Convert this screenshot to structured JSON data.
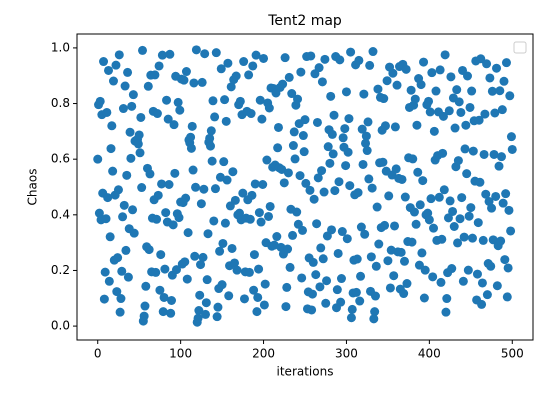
{
  "chart_data": {
    "type": "scatter",
    "title": "Tent2 map",
    "x_label": "iterations",
    "y_label": "Chaos",
    "color": "#1f77b4",
    "xlim": [
      -25,
      525
    ],
    "ylim": [
      -0.05,
      1.05
    ],
    "xticks": [
      0,
      100,
      200,
      300,
      400,
      500
    ],
    "yticks": [
      {
        "value": 0,
        "label": "0.0"
      },
      0.2,
      0.4,
      0.6,
      0.8,
      {
        "value": 1,
        "label": "1.0"
      }
    ],
    "x": [
      0,
      1,
      2,
      3,
      4,
      5,
      6,
      7,
      8,
      9,
      10,
      11,
      12,
      13,
      14,
      15,
      16,
      17,
      18,
      19,
      20,
      21,
      22,
      23,
      24,
      25,
      26,
      27,
      28,
      29,
      30,
      31,
      32,
      33,
      34,
      35,
      36,
      37,
      38,
      39,
      40,
      41,
      42,
      43,
      44,
      45,
      46,
      47,
      48,
      49,
      50,
      51,
      52,
      53,
      54,
      55,
      56,
      57,
      58,
      59,
      60,
      61,
      62,
      63,
      64,
      65,
      66,
      67,
      68,
      69,
      70,
      71,
      72,
      73,
      74,
      75,
      76,
      77,
      78,
      79,
      80,
      81,
      82,
      83,
      84,
      85,
      86,
      87,
      88,
      89,
      90,
      91,
      92,
      93,
      94,
      95,
      96,
      97,
      98,
      99,
      100,
      101,
      102,
      103,
      104,
      105,
      106,
      107,
      108,
      109,
      110,
      111,
      112,
      113,
      114,
      115,
      116,
      117,
      118,
      119,
      120,
      121,
      122,
      123,
      124,
      125,
      126,
      127,
      128,
      129,
      130,
      131,
      132,
      133,
      134,
      135,
      136,
      137,
      138,
      139,
      140,
      141,
      142,
      143,
      144,
      145,
      146,
      147,
      148,
      149,
      150,
      151,
      152,
      153,
      154,
      155,
      156,
      157,
      158,
      159,
      160,
      161,
      162,
      163,
      164,
      165,
      166,
      167,
      168,
      169,
      170,
      171,
      172,
      173,
      174,
      175,
      176,
      177,
      178,
      179,
      180,
      181,
      182,
      183,
      184,
      185,
      186,
      187,
      188,
      189,
      190,
      191,
      192,
      193,
      194,
      195,
      196,
      197,
      198,
      199,
      200,
      201,
      202,
      203,
      204,
      205,
      206,
      207,
      208,
      209,
      210,
      211,
      212,
      213,
      214,
      215,
      216,
      217,
      218,
      219,
      220,
      221,
      222,
      223,
      224,
      225,
      226,
      227,
      228,
      229,
      230,
      231,
      232,
      233,
      234,
      235,
      236,
      237,
      238,
      239,
      240,
      241,
      242,
      243,
      244,
      245,
      246,
      247,
      248,
      249,
      250,
      251,
      252,
      253,
      254,
      255,
      256,
      257,
      258,
      259,
      260,
      261,
      262,
      263,
      264,
      265,
      266,
      267,
      268,
      269,
      270,
      271,
      272,
      273,
      274,
      275,
      276,
      277,
      278,
      279,
      280,
      281,
      282,
      283,
      284,
      285,
      286,
      287,
      288,
      289,
      290,
      291,
      292,
      293,
      294,
      295,
      296,
      297,
      298,
      299,
      300,
      301,
      302,
      303,
      304,
      305,
      306,
      307,
      308,
      309,
      310,
      311,
      312,
      313,
      314,
      315,
      316,
      317,
      318,
      319,
      320,
      321,
      322,
      323,
      324,
      325,
      326,
      327,
      328,
      329,
      330,
      331,
      332,
      333,
      334,
      335,
      336,
      337,
      338,
      339,
      340,
      341,
      342,
      343,
      344,
      345,
      346,
      347,
      348,
      349,
      350,
      351,
      352,
      353,
      354,
      355,
      356,
      357,
      358,
      359,
      360,
      361,
      362,
      363,
      364,
      365,
      366,
      367,
      368,
      369,
      370,
      371,
      372,
      373,
      374,
      375,
      376,
      377,
      378,
      379,
      380,
      381,
      382,
      383,
      384,
      385,
      386,
      387,
      388,
      389,
      390,
      391,
      392,
      393,
      394,
      395,
      396,
      397,
      398,
      399,
      400,
      401,
      402,
      403,
      404,
      405,
      406,
      407,
      408,
      409,
      410,
      411,
      412,
      413,
      414,
      415,
      416,
      417,
      418,
      419,
      420,
      421,
      422,
      423,
      424,
      425,
      426,
      427,
      428,
      429,
      430,
      431,
      432,
      433,
      434,
      435,
      436,
      437,
      438,
      439,
      440,
      441,
      442,
      443,
      444,
      445,
      446,
      447,
      448,
      449,
      450,
      451,
      452,
      453,
      454,
      455,
      456,
      457,
      458,
      459,
      460,
      461,
      462,
      463,
      464,
      465,
      466,
      467,
      468,
      469,
      470,
      471,
      472,
      473,
      474,
      475,
      476,
      477,
      478,
      479,
      480,
      481,
      482,
      483,
      484,
      485,
      486,
      487,
      488,
      489,
      490,
      491,
      492,
      493,
      494,
      495,
      496,
      497,
      498,
      499,
      500
    ],
    "values": [
      0.6,
      0.796,
      0.406,
      0.808,
      0.382,
      0.76,
      0.478,
      0.951,
      0.097,
      0.194,
      0.386,
      0.768,
      0.462,
      0.919,
      0.161,
      0.321,
      0.638,
      0.72,
      0.557,
      0.881,
      0.237,
      0.471,
      0.938,
      0.124,
      0.246,
      0.49,
      0.975,
      0.05,
      0.099,
      0.197,
      0.393,
      0.782,
      0.434,
      0.863,
      0.272,
      0.542,
      0.912,
      0.176,
      0.35,
      0.697,
      0.603,
      0.79,
      0.418,
      0.832,
      0.334,
      0.665,
      0.667,
      0.663,
      0.671,
      0.655,
      0.687,
      0.623,
      0.75,
      0.498,
      0.991,
      0.018,
      0.036,
      0.072,
      0.143,
      0.285,
      0.567,
      0.862,
      0.275,
      0.547,
      0.902,
      0.195,
      0.388,
      0.772,
      0.454,
      0.903,
      0.193,
      0.384,
      0.764,
      0.47,
      0.935,
      0.129,
      0.257,
      0.511,
      0.974,
      0.052,
      0.103,
      0.205,
      0.408,
      0.812,
      0.374,
      0.744,
      0.509,
      0.977,
      0.046,
      0.092,
      0.183,
      0.364,
      0.724,
      0.549,
      0.898,
      0.203,
      0.404,
      0.804,
      0.39,
      0.776,
      0.446,
      0.888,
      0.223,
      0.444,
      0.884,
      0.231,
      0.46,
      0.915,
      0.169,
      0.336,
      0.669,
      0.659,
      0.679,
      0.639,
      0.718,
      0.561,
      0.874,
      0.251,
      0.499,
      0.993,
      0.014,
      0.028,
      0.056,
      0.111,
      0.221,
      0.44,
      0.876,
      0.247,
      0.492,
      0.979,
      0.042,
      0.084,
      0.167,
      0.332,
      0.661,
      0.675,
      0.647,
      0.702,
      0.593,
      0.81,
      0.378,
      0.752,
      0.494,
      0.983,
      0.034,
      0.068,
      0.135,
      0.269,
      0.535,
      0.925,
      0.149,
      0.297,
      0.591,
      0.814,
      0.37,
      0.736,
      0.525,
      0.945,
      0.109,
      0.217,
      0.432,
      0.86,
      0.279,
      0.555,
      0.886,
      0.227,
      0.452,
      0.899,
      0.201,
      0.4,
      0.796,
      0.406,
      0.808,
      0.382,
      0.76,
      0.478,
      0.951,
      0.098,
      0.195,
      0.388,
      0.772,
      0.454,
      0.903,
      0.193,
      0.384,
      0.764,
      0.47,
      0.935,
      0.129,
      0.257,
      0.511,
      0.974,
      0.052,
      0.103,
      0.205,
      0.408,
      0.812,
      0.374,
      0.744,
      0.509,
      0.962,
      0.076,
      0.151,
      0.3,
      0.597,
      0.802,
      0.394,
      0.784,
      0.43,
      0.856,
      0.287,
      0.571,
      0.854,
      0.291,
      0.579,
      0.838,
      0.322,
      0.641,
      0.714,
      0.569,
      0.858,
      0.283,
      0.563,
      0.87,
      0.259,
      0.515,
      0.965,
      0.07,
      0.139,
      0.277,
      0.551,
      0.894,
      0.211,
      0.42,
      0.836,
      0.326,
      0.649,
      0.698,
      0.601,
      0.794,
      0.41,
      0.816,
      0.366,
      0.728,
      0.541,
      0.913,
      0.173,
      0.344,
      0.685,
      0.627,
      0.742,
      0.513,
      0.969,
      0.062,
      0.123,
      0.245,
      0.488,
      0.971,
      0.058,
      0.115,
      0.229,
      0.456,
      0.907,
      0.185,
      0.368,
      0.732,
      0.533,
      0.929,
      0.141,
      0.281,
      0.559,
      0.878,
      0.242,
      0.482,
      0.959,
      0.082,
      0.163,
      0.324,
      0.645,
      0.706,
      0.585,
      0.826,
      0.346,
      0.689,
      0.619,
      0.758,
      0.487,
      0.969,
      0.066,
      0.131,
      0.261,
      0.519,
      0.957,
      0.086,
      0.171,
      0.34,
      0.677,
      0.643,
      0.71,
      0.577,
      0.842,
      0.314,
      0.625,
      0.746,
      0.505,
      0.985,
      0.03,
      0.06,
      0.119,
      0.237,
      0.472,
      0.939,
      0.121,
      0.241,
      0.48,
      0.955,
      0.09,
      0.179,
      0.356,
      0.708,
      0.581,
      0.834,
      0.33,
      0.657,
      0.683,
      0.631,
      0.734,
      0.529,
      0.937,
      0.125,
      0.249,
      0.496,
      0.987,
      0.026,
      0.052,
      0.108,
      0.215,
      0.428,
      0.852,
      0.295,
      0.587,
      0.822,
      0.354,
      0.704,
      0.589,
      0.818,
      0.362,
      0.72,
      0.557,
      0.882,
      0.235,
      0.468,
      0.931,
      0.137,
      0.273,
      0.543,
      0.909,
      0.181,
      0.36,
      0.716,
      0.565,
      0.866,
      0.267,
      0.531,
      0.933,
      0.133,
      0.265,
      0.527,
      0.941,
      0.117,
      0.233,
      0.464,
      0.923,
      0.153,
      0.304,
      0.605,
      0.786,
      0.426,
      0.848,
      0.302,
      0.601,
      0.794,
      0.41,
      0.816,
      0.366,
      0.722,
      0.553,
      0.89,
      0.219,
      0.436,
      0.868,
      0.263,
      0.523,
      0.949,
      0.101,
      0.201,
      0.4,
      0.796,
      0.406,
      0.808,
      0.382,
      0.77,
      0.458,
      0.911,
      0.177,
      0.352,
      0.7,
      0.597,
      0.845,
      0.308,
      0.613,
      0.77,
      0.463,
      0.921,
      0.157,
      0.312,
      0.621,
      0.754,
      0.49,
      0.975,
      0.05,
      0.099,
      0.192,
      0.389,
      0.774,
      0.45,
      0.896,
      0.207,
      0.412,
      0.82,
      0.358,
      0.712,
      0.573,
      0.85,
      0.299,
      0.595,
      0.806,
      0.386,
      0.768,
      0.462,
      0.919,
      0.161,
      0.32,
      0.637,
      0.722,
      0.548,
      0.899,
      0.201,
      0.395,
      0.786,
      0.426,
      0.845,
      0.316,
      0.629,
      0.738,
      0.521,
      0.953,
      0.094,
      0.187,
      0.372,
      0.74,
      0.517,
      0.961,
      0.078,
      0.155,
      0.308,
      0.617,
      0.762,
      0.474,
      0.943,
      0.113,
      0.225,
      0.448,
      0.892,
      0.215,
      0.424,
      0.844,
      0.31,
      0.617,
      0.766,
      0.466,
      0.927,
      0.145,
      0.289,
      0.575,
      0.846,
      0.306,
      0.609,
      0.778,
      0.442,
      0.88,
      0.239,
      0.476,
      0.947,
      0.105,
      0.209,
      0.416,
      0.828,
      0.342,
      0.681,
      0.635
    ]
  }
}
